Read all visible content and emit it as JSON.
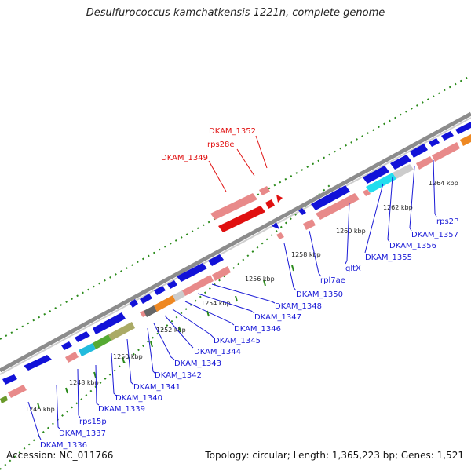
{
  "title": "Desulfurococcus kamchatkensis 1221n, complete genome",
  "footer": {
    "accession": "Accession: NC_011766",
    "topology": "Topology: circular; Length: 1,365,223 bp; Genes: 1,521"
  },
  "colors": {
    "backbone": "#8c8c8c",
    "tick": "#2a8a1a",
    "cds_forward": "#1212d8",
    "cds_reverse": "#e88a8a",
    "rna": "#e01010",
    "label_blue": "#1a1ad6",
    "label_red": "#e01010"
  },
  "ticks": [
    "1246 kbp",
    "1248 kbp",
    "1250 kbp",
    "1252 kbp",
    "1254 kbp",
    "1256 kbp",
    "1258 kbp",
    "1260 kbp",
    "1262 kbp",
    "1264 kbp"
  ],
  "genes_above": [
    "DKAM_1349",
    "rps28e",
    "DKAM_1352"
  ],
  "genes_below": [
    "DKAM_1336",
    "DKAM_1337",
    "rps15p",
    "DKAM_1339",
    "DKAM_1340",
    "DKAM_1341",
    "DKAM_1342",
    "DKAM_1343",
    "DKAM_1344",
    "DKAM_1345",
    "DKAM_1346",
    "DKAM_1347",
    "DKAM_1348",
    "DKAM_1350",
    "rpl7ae",
    "gltX",
    "DKAM_1355",
    "DKAM_1356",
    "DKAM_1357",
    "rps2P"
  ]
}
